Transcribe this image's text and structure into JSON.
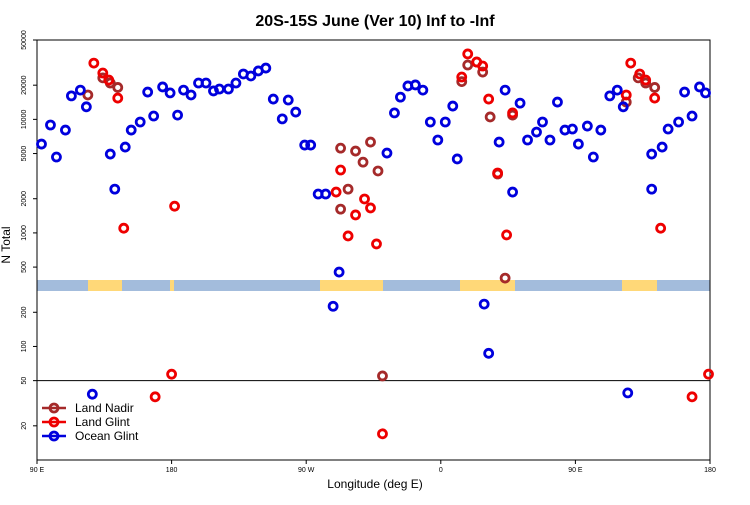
{
  "chart_data": {
    "type": "scatter",
    "title": "20S-15S June (Ver 10)   Inf to -Inf",
    "x_label": "Longitude (deg E)",
    "y_label": "N Total",
    "xlim": [
      90,
      540
    ],
    "xticks": [
      {
        "value": 90,
        "label": "90 E"
      },
      {
        "value": 180,
        "label": "180"
      },
      {
        "value": 270,
        "label": "90 W"
      },
      {
        "value": 360,
        "label": "0"
      },
      {
        "value": 450,
        "label": "90 E"
      },
      {
        "value": 540,
        "label": "180"
      }
    ],
    "ylim": [
      10,
      50000
    ],
    "log_y": true,
    "yticks": [
      20,
      50,
      100,
      200,
      500,
      1000,
      2000,
      5000,
      10000,
      20000,
      50000
    ],
    "hline": 50,
    "legend": "lower left",
    "series": [
      {
        "name": "Land Nadir",
        "color": "#a52a2a",
        "x": [
          124,
          134,
          139,
          144,
          293,
          293,
          298,
          303,
          308,
          313,
          318,
          321,
          374,
          378,
          384,
          388,
          393,
          398,
          403,
          408,
          484,
          492,
          497,
          503
        ],
        "values": [
          16400,
          23200,
          20900,
          19100,
          1620,
          5580,
          2430,
          5260,
          4200,
          6310,
          3510,
          55,
          21500,
          30100,
          32000,
          26100,
          10500,
          3300,
          400,
          10900,
          14200,
          23200,
          20900,
          19100
        ]
      },
      {
        "name": "Land Glint",
        "color": "#ee0000",
        "x": [
          128,
          134,
          138,
          144,
          148,
          182,
          180,
          169,
          290,
          293,
          298,
          303,
          309,
          313,
          317,
          321,
          374,
          378,
          384,
          388,
          392,
          398,
          404,
          408,
          487,
          493,
          497,
          503,
          507,
          484,
          528,
          539
        ],
        "values": [
          31300,
          25600,
          22200,
          15400,
          1100,
          1720,
          57,
          36,
          2290,
          3580,
          940,
          1440,
          1990,
          1660,
          800,
          17,
          23600,
          37700,
          32000,
          29500,
          15100,
          3370,
          960,
          11400,
          31300,
          25100,
          22200,
          15400,
          1100,
          16400,
          36,
          57
        ]
      },
      {
        "name": "Ocean Glint",
        "color": "#0000dd",
        "x": [
          93,
          99,
          103,
          109,
          113,
          119,
          123,
          139,
          142,
          149,
          153,
          159,
          164,
          168,
          174,
          179,
          184,
          188,
          193,
          198,
          203,
          208,
          212,
          218,
          223,
          228,
          233,
          238,
          243,
          248,
          254,
          258,
          263,
          269,
          273,
          278,
          283,
          292,
          288,
          324,
          329,
          333,
          338,
          343,
          348,
          353,
          358,
          363,
          368,
          371,
          389,
          392,
          399,
          403,
          408,
          413,
          418,
          424,
          428,
          433,
          438,
          443,
          448,
          452,
          458,
          462,
          467,
          473,
          478,
          482,
          501,
          501,
          508,
          512,
          519,
          523,
          528,
          533,
          537,
          127,
          485
        ],
        "values": [
          6060,
          8920,
          4660,
          8050,
          16100,
          18100,
          12900,
          4950,
          2430,
          5700,
          8050,
          9480,
          17400,
          10700,
          19300,
          17100,
          10900,
          18100,
          16400,
          20900,
          20900,
          17800,
          18500,
          18500,
          20900,
          25100,
          24100,
          26700,
          28300,
          15100,
          10100,
          14800,
          11600,
          5940,
          5940,
          2200,
          2200,
          452,
          226,
          5050,
          11400,
          15700,
          19700,
          20100,
          18100,
          9480,
          6580,
          9480,
          13100,
          4480,
          236,
          87,
          6310,
          18100,
          2290,
          13900,
          6580,
          7730,
          9480,
          6580,
          14200,
          8050,
          8220,
          6060,
          8730,
          4660,
          8050,
          16100,
          18100,
          12900,
          4950,
          2430,
          5700,
          8220,
          9480,
          17400,
          10700,
          19300,
          17100,
          38,
          39
        ]
      }
    ]
  }
}
